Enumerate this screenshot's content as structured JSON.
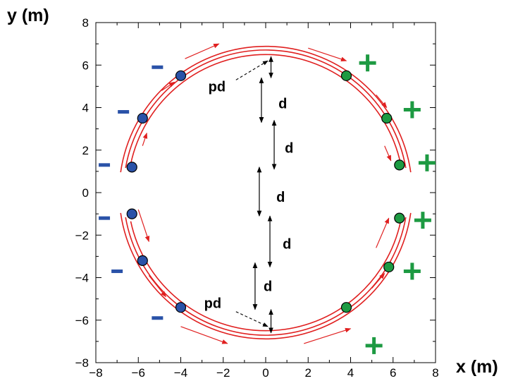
{
  "chart_data": {
    "type": "diagram",
    "xlabel": "x (m)",
    "ylabel": "y (m)",
    "xlim": [
      -8,
      8
    ],
    "ylim": [
      -8,
      8
    ],
    "x_ticks": [
      -8,
      -6,
      -4,
      -2,
      0,
      2,
      4,
      6,
      8
    ],
    "y_ticks": [
      8,
      6,
      4,
      2,
      0,
      -2,
      -4,
      -6,
      -8
    ],
    "x_tick_labels": [
      "−8",
      "−6",
      "−4",
      "−2",
      "0",
      "2",
      "4",
      "6",
      "8"
    ],
    "y_tick_labels": [
      "8",
      "6",
      "4",
      "2",
      "0",
      "−2",
      "−4",
      "−6",
      "−8"
    ],
    "ring_radii_m": [
      6.5,
      6.7,
      6.9
    ],
    "electrodes": {
      "negative": [
        [
          -4.0,
          5.5
        ],
        [
          -5.8,
          3.5
        ],
        [
          -6.3,
          1.2
        ],
        [
          -6.3,
          -1.0
        ],
        [
          -5.8,
          -3.2
        ],
        [
          -4.0,
          -5.4
        ]
      ],
      "positive": [
        [
          3.8,
          5.5
        ],
        [
          5.7,
          3.5
        ],
        [
          6.3,
          1.3
        ],
        [
          6.3,
          -1.2
        ],
        [
          5.8,
          -3.5
        ],
        [
          3.8,
          -5.4
        ]
      ]
    },
    "negative_signs": [
      [
        -5.1,
        5.9
      ],
      [
        -6.7,
        3.8
      ],
      [
        -7.6,
        1.3
      ],
      [
        -7.6,
        -1.2
      ],
      [
        -7.0,
        -3.7
      ],
      [
        -5.1,
        -5.9
      ]
    ],
    "positive_signs": [
      [
        4.8,
        6.1
      ],
      [
        6.9,
        3.9
      ],
      [
        7.6,
        1.4
      ],
      [
        7.4,
        -1.3
      ],
      [
        6.9,
        -3.7
      ],
      [
        5.1,
        -7.2
      ]
    ],
    "colors": {
      "negative": "#2a52a8",
      "positive": "#1d9a42",
      "ring": "#e02020",
      "arrow": "#e02020",
      "text": "#000000"
    },
    "labels": {
      "negative_sign": "−",
      "positive_sign": "+",
      "d": "d",
      "pd": "pd"
    }
  }
}
